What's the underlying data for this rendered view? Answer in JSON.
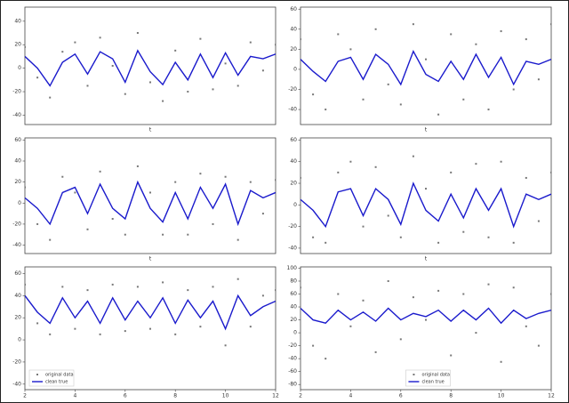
{
  "chart_data": [
    {
      "type": "scatter",
      "xlabel": "t",
      "xlim": [
        2,
        12
      ],
      "ylim": [
        -48,
        52
      ],
      "yticks": [
        -40,
        -20,
        0,
        20,
        40
      ],
      "x": [
        2,
        2.5,
        3,
        3.5,
        4,
        4.5,
        5,
        5.5,
        6,
        6.5,
        7,
        7.5,
        8,
        8.5,
        9,
        9.5,
        10,
        10.5,
        11,
        11.5,
        12
      ],
      "series": [
        {
          "name": "original data",
          "color": "#777777",
          "style": "points",
          "values": [
            18,
            -8,
            -25,
            14,
            22,
            -15,
            26,
            2,
            -22,
            30,
            -12,
            -28,
            15,
            -20,
            25,
            -18,
            4,
            -15,
            22,
            -2,
            20
          ]
        },
        {
          "name": "clean true",
          "color": "#1a1acc",
          "style": "line",
          "values": [
            10,
            0,
            -15,
            5,
            12,
            -5,
            14,
            8,
            -12,
            15,
            -3,
            -14,
            5,
            -10,
            12,
            -8,
            13,
            -6,
            10,
            8,
            12
          ]
        }
      ]
    },
    {
      "type": "scatter",
      "xlabel": "t",
      "xlim": [
        2,
        12
      ],
      "ylim": [
        -55,
        62
      ],
      "yticks": [
        -40,
        -20,
        0,
        20,
        40,
        60
      ],
      "x": [
        2,
        2.5,
        3,
        3.5,
        4,
        4.5,
        5,
        5.5,
        6,
        6.5,
        7,
        7.5,
        8,
        8.5,
        9,
        9.5,
        10,
        10.5,
        11,
        11.5,
        12
      ],
      "series": [
        {
          "name": "original data",
          "color": "#777777",
          "style": "points",
          "values": [
            30,
            -25,
            -40,
            35,
            20,
            -30,
            40,
            -15,
            -35,
            45,
            10,
            -45,
            35,
            -30,
            25,
            -40,
            38,
            -20,
            30,
            -10,
            45
          ]
        },
        {
          "name": "clean true",
          "color": "#1a1acc",
          "style": "line",
          "values": [
            10,
            -2,
            -12,
            8,
            12,
            -10,
            15,
            5,
            -15,
            18,
            -5,
            -12,
            8,
            -10,
            15,
            -8,
            12,
            -15,
            8,
            5,
            10
          ]
        }
      ]
    },
    {
      "type": "scatter",
      "xlabel": "t",
      "xlim": [
        2,
        12
      ],
      "ylim": [
        -48,
        62
      ],
      "yticks": [
        -40,
        -20,
        0,
        20,
        40,
        60
      ],
      "x": [
        2,
        2.5,
        3,
        3.5,
        4,
        4.5,
        5,
        5.5,
        6,
        6.5,
        7,
        7.5,
        8,
        8.5,
        9,
        9.5,
        10,
        10.5,
        11,
        11.5,
        12
      ],
      "series": [
        {
          "name": "original data",
          "color": "#777777",
          "style": "points",
          "values": [
            15,
            -20,
            -35,
            25,
            10,
            -25,
            30,
            -15,
            -30,
            35,
            10,
            -30,
            20,
            -30,
            28,
            -20,
            25,
            -35,
            20,
            -10,
            22
          ]
        },
        {
          "name": "clean true",
          "color": "#1a1acc",
          "style": "line",
          "values": [
            5,
            -5,
            -20,
            10,
            15,
            -10,
            18,
            -5,
            -15,
            20,
            -5,
            -18,
            10,
            -15,
            15,
            -5,
            18,
            -20,
            12,
            5,
            10
          ]
        }
      ]
    },
    {
      "type": "scatter",
      "xlabel": "t",
      "xlim": [
        2,
        12
      ],
      "ylim": [
        -45,
        62
      ],
      "yticks": [
        -40,
        -20,
        0,
        20,
        40,
        60
      ],
      "x": [
        2,
        2.5,
        3,
        3.5,
        4,
        4.5,
        5,
        5.5,
        6,
        6.5,
        7,
        7.5,
        8,
        8.5,
        9,
        9.5,
        10,
        10.5,
        11,
        11.5,
        12
      ],
      "series": [
        {
          "name": "original data",
          "color": "#777777",
          "style": "points",
          "values": [
            25,
            -30,
            -35,
            30,
            40,
            -20,
            35,
            -10,
            -30,
            45,
            15,
            -35,
            30,
            -25,
            38,
            -30,
            40,
            -35,
            25,
            -15,
            30
          ]
        },
        {
          "name": "clean true",
          "color": "#1a1acc",
          "style": "line",
          "values": [
            5,
            -5,
            -20,
            12,
            15,
            -10,
            15,
            5,
            -18,
            20,
            -5,
            -15,
            10,
            -12,
            15,
            -5,
            15,
            -20,
            10,
            5,
            10
          ]
        }
      ]
    },
    {
      "type": "scatter",
      "legend": "lower left",
      "xlim": [
        2,
        12
      ],
      "xticks": [
        2,
        4,
        6,
        8,
        10,
        12
      ],
      "ylim": [
        -45,
        66
      ],
      "yticks": [
        -40,
        -20,
        0,
        20,
        40,
        60
      ],
      "x": [
        2,
        2.5,
        3,
        3.5,
        4,
        4.5,
        5,
        5.5,
        6,
        6.5,
        7,
        7.5,
        8,
        8.5,
        9,
        9.5,
        10,
        10.5,
        11,
        11.5,
        12
      ],
      "series": [
        {
          "name": "original data",
          "color": "#777777",
          "style": "points",
          "values": [
            50,
            15,
            5,
            48,
            10,
            45,
            5,
            50,
            8,
            48,
            10,
            52,
            5,
            45,
            12,
            48,
            -5,
            55,
            12,
            40,
            45
          ]
        },
        {
          "name": "clean true",
          "color": "#1a1acc",
          "style": "line",
          "values": [
            40,
            25,
            15,
            38,
            20,
            35,
            15,
            38,
            18,
            35,
            20,
            38,
            15,
            36,
            20,
            35,
            10,
            40,
            22,
            30,
            35
          ]
        }
      ]
    },
    {
      "type": "scatter",
      "legend": "lower right",
      "xlim": [
        2,
        12
      ],
      "xticks": [
        2,
        4,
        6,
        8,
        10,
        12
      ],
      "ylim": [
        -88,
        102
      ],
      "yticks": [
        -80,
        -60,
        -40,
        -20,
        0,
        20,
        40,
        60,
        80,
        100
      ],
      "x": [
        2,
        2.5,
        3,
        3.5,
        4,
        4.5,
        5,
        5.5,
        6,
        6.5,
        7,
        7.5,
        8,
        8.5,
        9,
        9.5,
        10,
        10.5,
        11,
        11.5,
        12
      ],
      "series": [
        {
          "name": "original data",
          "color": "#777777",
          "style": "points",
          "values": [
            70,
            -20,
            -40,
            60,
            10,
            50,
            -30,
            80,
            -10,
            55,
            20,
            65,
            -35,
            60,
            0,
            75,
            -45,
            70,
            10,
            -20,
            60
          ]
        },
        {
          "name": "clean true",
          "color": "#1a1acc",
          "style": "line",
          "values": [
            38,
            20,
            15,
            35,
            20,
            32,
            18,
            38,
            20,
            30,
            25,
            35,
            18,
            35,
            20,
            38,
            15,
            35,
            22,
            30,
            35
          ]
        }
      ]
    }
  ]
}
